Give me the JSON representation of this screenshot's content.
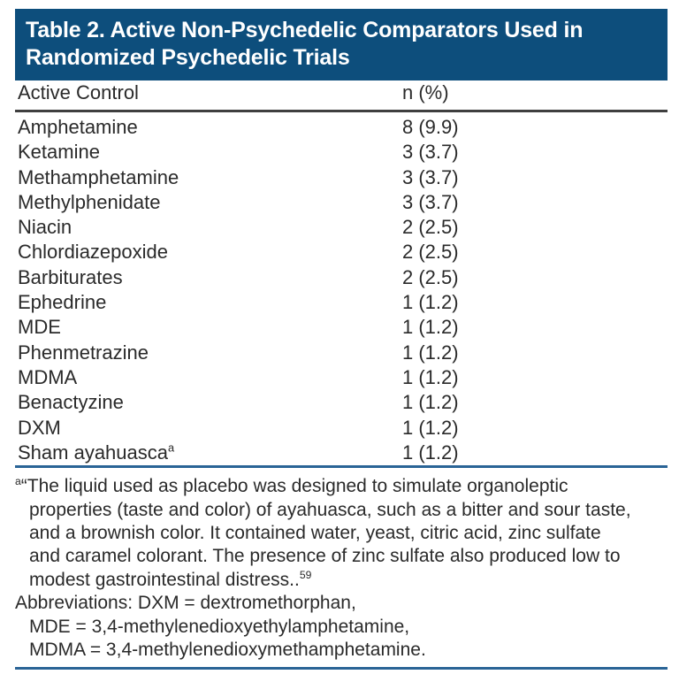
{
  "colors": {
    "header_bar": "#0d4e7c",
    "rule_dark": "#3f3f3f",
    "rule_blue": "#2a6496",
    "text": "#2a2a2a",
    "title_text": "#ffffff"
  },
  "header": {
    "title_line1": "Table 2. Active Non-Psychedelic Comparators Used in",
    "title_line2": "Randomized Psychedelic Trials"
  },
  "table": {
    "columns": [
      "Active Control",
      "n (%)"
    ],
    "rows": [
      {
        "name": "Amphetamine",
        "sup": "",
        "value": "8 (9.9)"
      },
      {
        "name": "Ketamine",
        "sup": "",
        "value": "3 (3.7)"
      },
      {
        "name": "Methamphetamine",
        "sup": "",
        "value": "3 (3.7)"
      },
      {
        "name": "Methylphenidate",
        "sup": "",
        "value": "3 (3.7)"
      },
      {
        "name": "Niacin",
        "sup": "",
        "value": "2 (2.5)"
      },
      {
        "name": "Chlordiazepoxide",
        "sup": "",
        "value": "2 (2.5)"
      },
      {
        "name": "Barbiturates",
        "sup": "",
        "value": "2 (2.5)"
      },
      {
        "name": "Ephedrine",
        "sup": "",
        "value": "1 (1.2)"
      },
      {
        "name": "MDE",
        "sup": "",
        "value": "1 (1.2)"
      },
      {
        "name": "Phenmetrazine",
        "sup": "",
        "value": "1 (1.2)"
      },
      {
        "name": "MDMA",
        "sup": "",
        "value": "1 (1.2)"
      },
      {
        "name": "Benactyzine",
        "sup": "",
        "value": "1 (1.2)"
      },
      {
        "name": "DXM",
        "sup": "",
        "value": "1 (1.2)"
      },
      {
        "name": "Sham ayahuasca",
        "sup": "a",
        "value": "1 (1.2)"
      }
    ]
  },
  "footnotes": {
    "lines": [
      {
        "sup_pre": "a",
        "text": "“The liquid used as placebo was designed to simulate organoleptic",
        "sup_post": ""
      },
      {
        "sup_pre": "",
        "text": "properties (taste and color) of ayahuasca, such as a bitter and sour taste,",
        "sup_post": ""
      },
      {
        "sup_pre": "",
        "text": "and a brownish color. It contained water, yeast, citric acid, zinc sulfate",
        "sup_post": ""
      },
      {
        "sup_pre": "",
        "text": "and caramel colorant. The presence of zinc sulfate also produced low to",
        "sup_post": ""
      },
      {
        "sup_pre": "",
        "text": "modest gastrointestinal distress..",
        "sup_post": "59"
      },
      {
        "sup_pre": "",
        "text": "Abbreviations: DXM = dextromethorphan,",
        "sup_post": ""
      },
      {
        "sup_pre": "",
        "text": "MDE = 3,4-methylenedioxyethylamphetamine,",
        "sup_post": ""
      },
      {
        "sup_pre": "",
        "text": "MDMA = 3,4-methylenedioxymethamphetamine.",
        "sup_post": ""
      }
    ]
  }
}
